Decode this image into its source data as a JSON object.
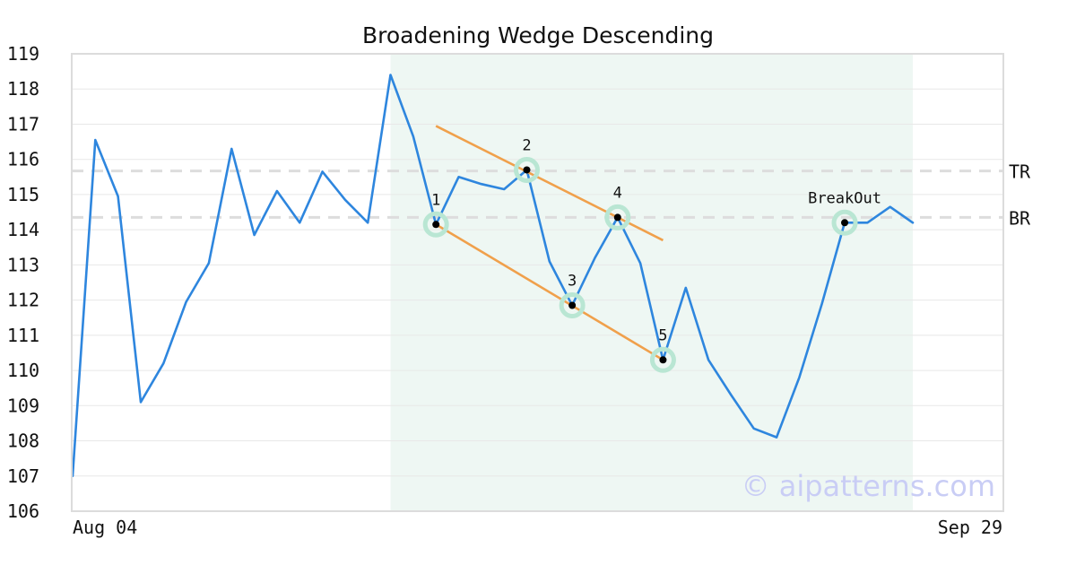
{
  "chart_data": {
    "type": "line",
    "title": "Broadening Wedge Descending",
    "ylim": [
      106,
      119
    ],
    "yticks": [
      106,
      107,
      108,
      109,
      110,
      111,
      112,
      113,
      114,
      115,
      116,
      117,
      118,
      119
    ],
    "x_tick_labels": [
      "Aug 04",
      "Sep 29"
    ],
    "grid": true,
    "series": [
      {
        "color": "#2e86de",
        "values": [
          107.0,
          116.55,
          114.95,
          109.1,
          110.2,
          111.95,
          113.05,
          116.3,
          113.85,
          115.1,
          114.2,
          115.65,
          114.85,
          114.2,
          118.4,
          116.65,
          114.15,
          115.5,
          115.3,
          115.15,
          115.7,
          113.1,
          111.85,
          113.2,
          114.35,
          113.05,
          110.3,
          112.35,
          110.3,
          109.3,
          108.35,
          108.1,
          109.8,
          111.9,
          114.2,
          114.2,
          114.65,
          114.2
        ]
      }
    ],
    "pattern_region": {
      "start_index": 14,
      "end_index": 37,
      "color": "#eef7f3"
    },
    "levels": [
      {
        "label": "TR",
        "value": 115.67
      },
      {
        "label": "BR",
        "value": 114.35
      }
    ],
    "trendlines": [
      {
        "color": "#f0a04b",
        "from": {
          "index": 16,
          "value": 116.95
        },
        "to": {
          "index": 26,
          "value": 113.7
        }
      },
      {
        "color": "#f0a04b",
        "from": {
          "index": 16,
          "value": 114.15
        },
        "to": {
          "index": 26,
          "value": 110.3
        }
      }
    ],
    "points": [
      {
        "label": "1",
        "index": 16,
        "value": 114.15
      },
      {
        "label": "2",
        "index": 20,
        "value": 115.7
      },
      {
        "label": "3",
        "index": 22,
        "value": 111.85
      },
      {
        "label": "4",
        "index": 24,
        "value": 114.35
      },
      {
        "label": "5",
        "index": 26,
        "value": 110.3
      },
      {
        "label": "BreakOut",
        "index": 34,
        "value": 114.2
      }
    ],
    "watermark": "© aipatterns.com"
  }
}
